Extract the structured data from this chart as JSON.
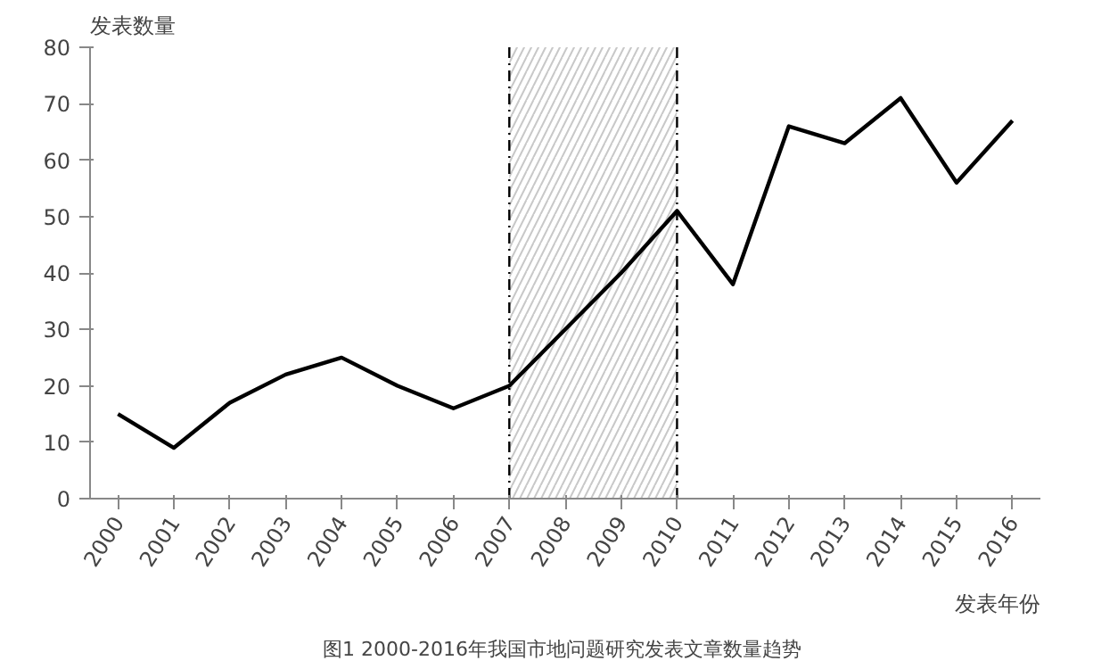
{
  "chart_data": {
    "type": "line",
    "ylabel": "发表数量",
    "xlabel": "发表年份",
    "categories": [
      "2000",
      "2001",
      "2002",
      "2003",
      "2004",
      "2005",
      "2006",
      "2007",
      "2008",
      "2009",
      "2010",
      "2011",
      "2012",
      "2013",
      "2014",
      "2015",
      "2016"
    ],
    "series": [
      {
        "color": "#000000",
        "values": [
          15,
          9,
          17,
          22,
          25,
          20,
          16,
          20,
          30,
          40,
          51,
          38,
          66,
          63,
          71,
          56,
          67
        ]
      }
    ],
    "ylim": [
      0,
      80
    ],
    "yticks": [
      0,
      10,
      20,
      30,
      40,
      50,
      60,
      70,
      80
    ],
    "bands": [
      {
        "axis": "x",
        "from": "2007",
        "to": "2010",
        "color": "#c8c8c8"
      }
    ],
    "ref_lines": [
      {
        "axis": "x",
        "value": "2007",
        "color": "#000000",
        "line_style": "dashed"
      },
      {
        "axis": "x",
        "value": "2010",
        "color": "#000000",
        "line_style": "dashed"
      }
    ],
    "annotations": [
      "图1  2000-2016年我国市地问题研究发表文章数量趋势"
    ],
    "grid": false,
    "marker": "none",
    "line_style": "solid"
  }
}
